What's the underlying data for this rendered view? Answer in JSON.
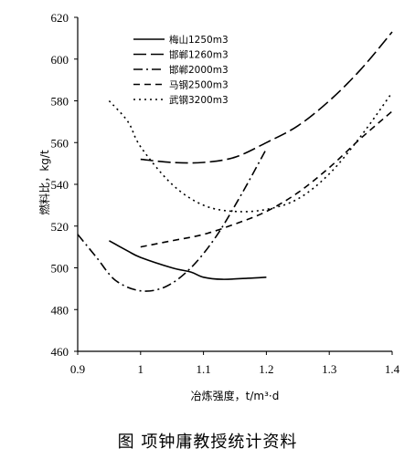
{
  "caption": "图  项钟庸教授统计资料",
  "chart_data": {
    "type": "line",
    "xlabel": "冶炼强度，t/m³·d",
    "ylabel": "燃料比，kg/t",
    "xlim": [
      0.9,
      1.4
    ],
    "ylim": [
      460,
      620
    ],
    "x_ticks": [
      "0.9",
      "1",
      "1.1",
      "1.2",
      "1.3",
      "1.4"
    ],
    "y_ticks": [
      "460",
      "480",
      "500",
      "520",
      "540",
      "560",
      "580",
      "600",
      "620"
    ],
    "grid": false,
    "legend_position": "top-center",
    "series": [
      {
        "name": "梅山1250m3",
        "dash": "solid",
        "points": [
          [
            0.95,
            513
          ],
          [
            0.98,
            508
          ],
          [
            1.0,
            505
          ],
          [
            1.05,
            500
          ],
          [
            1.08,
            498
          ],
          [
            1.1,
            495.5
          ],
          [
            1.13,
            494.5
          ],
          [
            1.17,
            495
          ],
          [
            1.2,
            495.5
          ]
        ]
      },
      {
        "name": "邯郸1260m3",
        "dash": "long-dash",
        "points": [
          [
            1.0,
            552
          ],
          [
            1.05,
            550.5
          ],
          [
            1.1,
            550.5
          ],
          [
            1.15,
            553
          ],
          [
            1.2,
            560
          ],
          [
            1.25,
            568
          ],
          [
            1.3,
            580
          ],
          [
            1.35,
            595
          ],
          [
            1.4,
            613
          ]
        ]
      },
      {
        "name": "邯郸2000m3",
        "dash": "dash-dot",
        "points": [
          [
            0.9,
            516
          ],
          [
            0.93,
            505
          ],
          [
            0.96,
            494
          ],
          [
            1.0,
            489
          ],
          [
            1.04,
            491
          ],
          [
            1.08,
            500
          ],
          [
            1.12,
            515
          ],
          [
            1.16,
            535
          ],
          [
            1.2,
            557
          ]
        ]
      },
      {
        "name": "马钢2500m3",
        "dash": "medium-dash",
        "points": [
          [
            1.0,
            510
          ],
          [
            1.05,
            513
          ],
          [
            1.1,
            516
          ],
          [
            1.15,
            521
          ],
          [
            1.2,
            527
          ],
          [
            1.25,
            536
          ],
          [
            1.3,
            548
          ],
          [
            1.35,
            562
          ],
          [
            1.4,
            575
          ]
        ]
      },
      {
        "name": "武钢3200m3",
        "dash": "dotted",
        "points": [
          [
            0.95,
            580
          ],
          [
            0.98,
            570
          ],
          [
            1.0,
            558
          ],
          [
            1.05,
            540
          ],
          [
            1.1,
            530
          ],
          [
            1.15,
            527
          ],
          [
            1.2,
            528
          ],
          [
            1.25,
            533
          ],
          [
            1.3,
            545
          ],
          [
            1.35,
            563
          ],
          [
            1.4,
            584
          ]
        ]
      }
    ]
  }
}
